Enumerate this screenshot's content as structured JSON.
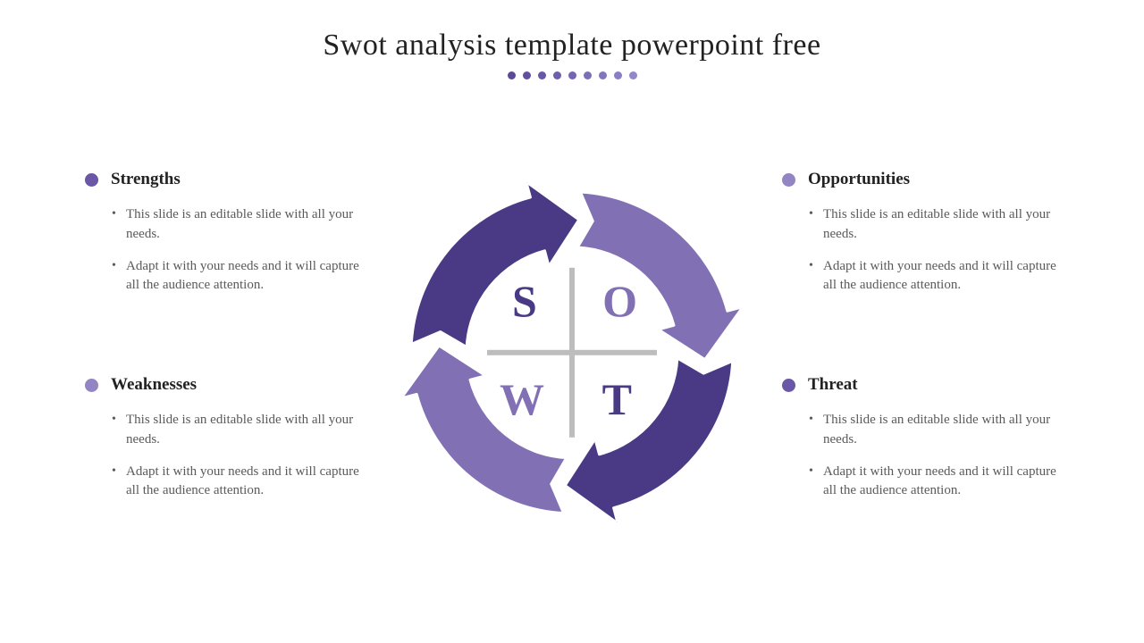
{
  "title": "Swot analysis template powerpoint free",
  "colors": {
    "dark_purple": "#4a3a85",
    "light_purple": "#8270b5",
    "bullet_dark": "#6a58a6",
    "bullet_light": "#9384c3",
    "dot_start": "#5b4a96",
    "dot_end": "#9384c3",
    "text_heading": "#222222",
    "text_body": "#5a5a5a",
    "cross": "#bdbdbd",
    "bg": "#ffffff"
  },
  "dots": {
    "count": 9,
    "colors": [
      "#5b4a96",
      "#614fa0",
      "#6857a6",
      "#6f5fac",
      "#7666b2",
      "#7d6eb8",
      "#8476be",
      "#8b7ec4",
      "#9386ca"
    ]
  },
  "quadrants": {
    "strengths": {
      "label": "Strengths",
      "bullet_color": "#6a58a6",
      "items": [
        "This slide is an editable slide with all your needs.",
        "Adapt it with your needs and it will capture all the audience attention."
      ]
    },
    "opportunities": {
      "label": "Opportunities",
      "bullet_color": "#9384c3",
      "items": [
        "This slide is an editable slide with all your needs.",
        "Adapt it with your needs and it will capture all the audience attention."
      ]
    },
    "weaknesses": {
      "label": "Weaknesses",
      "bullet_color": "#9384c3",
      "items": [
        "This slide is an editable slide with all your needs.",
        "Adapt it with your needs and it will capture all the audience attention."
      ]
    },
    "threat": {
      "label": "Threat",
      "bullet_color": "#6a58a6",
      "items": [
        "This slide is an editable slide with all your needs.",
        "Adapt it with your needs and it will capture all the audience attention."
      ]
    }
  },
  "center": {
    "letters": {
      "s": "S",
      "o": "O",
      "w": "W",
      "t": "T"
    },
    "letter_colors": {
      "s": "#4a3a85",
      "o": "#8270b5",
      "w": "#8270b5",
      "t": "#4a3a85"
    }
  },
  "diagram": {
    "type": "circular-arrow-cycle",
    "segments": 4,
    "segment_colors": [
      "#4a3a85",
      "#8270b5",
      "#4a3a85",
      "#8270b5"
    ],
    "outer_radius": 180,
    "inner_radius": 118
  }
}
